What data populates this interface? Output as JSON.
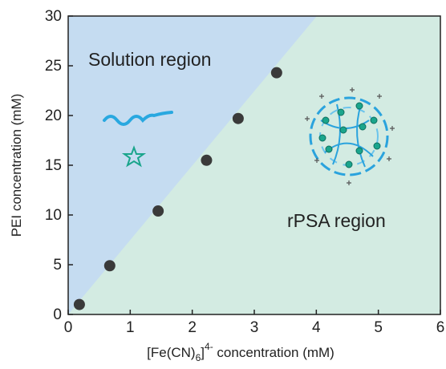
{
  "chart_data": {
    "type": "scatter",
    "x_label": [
      "[Fe(CN)",
      "6",
      "]",
      "4-",
      " concentration (mM)"
    ],
    "y_label": "PEI concentration (mM)",
    "annotations": [
      "Solution region",
      "rPSA region"
    ],
    "x": [
      0.18,
      0.67,
      1.45,
      2.23,
      2.74,
      3.36
    ],
    "values": [
      1.0,
      4.9,
      10.4,
      15.5,
      19.7,
      24.3
    ],
    "color": "#3a3a3a",
    "xlim": [
      0,
      6
    ],
    "xticks": [
      0,
      1,
      2,
      3,
      4,
      5,
      6
    ],
    "ylim": [
      0,
      30
    ],
    "yticks": [
      0,
      5,
      10,
      15,
      20,
      25,
      30
    ]
  }
}
